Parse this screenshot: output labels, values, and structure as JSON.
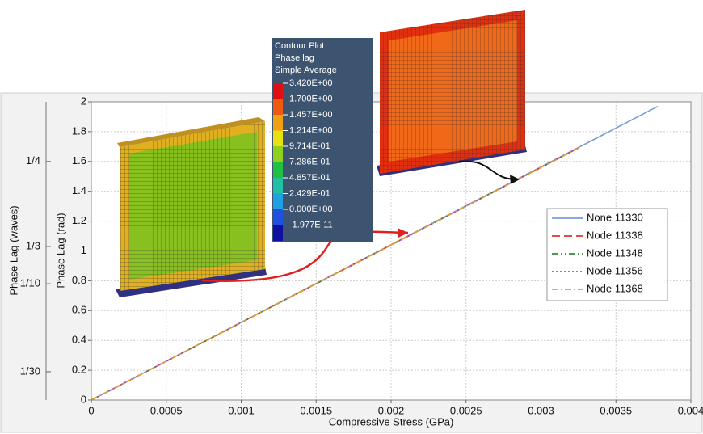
{
  "chart_data": {
    "type": "line",
    "xlabel": "Compressive Stress (GPa)",
    "ylabel": "Phase Lag (rad)",
    "y2label": "Phase Lag (waves)",
    "xlim": [
      0,
      0.004
    ],
    "xticks": [
      0,
      0.0005,
      0.001,
      0.0015,
      0.002,
      0.0025,
      0.003,
      0.0035,
      0.004
    ],
    "ylim": [
      0,
      2
    ],
    "yticks": [
      0,
      0.2,
      0.4,
      0.6,
      0.8,
      1,
      1.2,
      1.4,
      1.6,
      1.8,
      2
    ],
    "y2lim": [
      0,
      2
    ],
    "y2ticks": [
      {
        "value": 1.6,
        "label": "1/4"
      },
      {
        "value": 1.03,
        "label": "1/3"
      },
      {
        "value": 0.78,
        "label": "1/10"
      },
      {
        "value": 0.19,
        "label": "1/30"
      }
    ],
    "grid": true,
    "legend": "right",
    "series": [
      {
        "name": "None 11330",
        "color": "#7b9bd6",
        "dash": "none",
        "x": [
          0,
          0.00378
        ],
        "values": [
          0,
          1.97
        ]
      },
      {
        "name": "Node 11338",
        "color": "#d83a2c",
        "dash": "10 5",
        "x": [
          0,
          0.00325
        ],
        "values": [
          0,
          1.69
        ]
      },
      {
        "name": "Node 11348",
        "color": "#3a8a3a",
        "dash": "8 3 2 3 2 3",
        "x": [
          0,
          0.00325
        ],
        "values": [
          0,
          1.69
        ]
      },
      {
        "name": "Node 11356",
        "color": "#c040c8",
        "dash": "2 3",
        "x": [
          0,
          0.00325
        ],
        "values": [
          0,
          1.69
        ]
      },
      {
        "name": "Node 11368",
        "color": "#e0a030",
        "dash": "8 3 2 3",
        "x": [
          0,
          0.00325
        ],
        "values": [
          0,
          1.69
        ]
      }
    ],
    "contour_legend": {
      "title": [
        "Contour Plot",
        "Phase lag",
        "Simple Average"
      ],
      "levels": [
        {
          "label": "3.420E+00",
          "color": "#e01010"
        },
        {
          "label": "1.700E+00",
          "color": "#f05a10"
        },
        {
          "label": "1.457E+00",
          "color": "#f0a010"
        },
        {
          "label": "1.214E+00",
          "color": "#e8e010"
        },
        {
          "label": "9.714E-01",
          "color": "#90d020"
        },
        {
          "label": "7.286E-01",
          "color": "#20c040"
        },
        {
          "label": "4.857E-01",
          "color": "#20c0a0"
        },
        {
          "label": "2.429E-01",
          "color": "#20a0e0"
        },
        {
          "label": "0.000E+00",
          "color": "#2050e0"
        },
        {
          "label": "-1.977E-11",
          "color": "#1010a0"
        }
      ]
    }
  }
}
